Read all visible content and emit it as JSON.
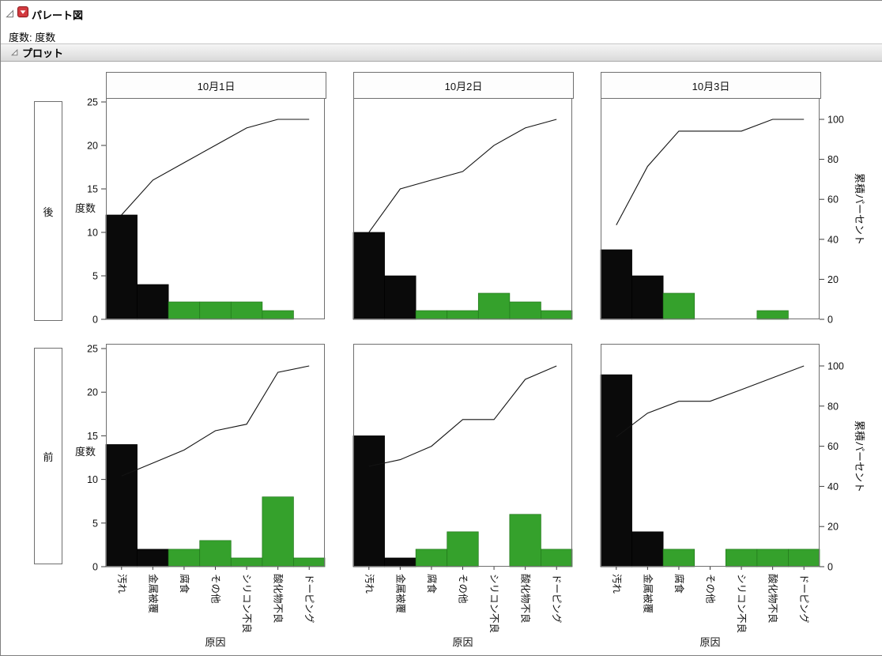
{
  "report": {
    "title": "パレート図",
    "freq_text": "度数: 度数",
    "plot_section_title": "プロット"
  },
  "chart_data": {
    "type": "bar",
    "chart_kind": "pareto-comparative",
    "title": "パレート図",
    "x_axis_label": "原因",
    "count_axis": {
      "label": "度数",
      "min": 0,
      "max": 25,
      "ticks": [
        0,
        5,
        10,
        15,
        20,
        25
      ]
    },
    "percent_axis": {
      "label": "累積パーセント",
      "min": 0,
      "max": 100,
      "ticks": [
        0,
        20,
        40,
        60,
        80,
        100
      ]
    },
    "facet_rows": [
      "後",
      "前"
    ],
    "facet_cols": [
      "10月1日",
      "10月2日",
      "10月3日"
    ],
    "categories": [
      "汚れ",
      "金属被覆",
      "腐食",
      "その他",
      "シリコン不良",
      "酸化物不良",
      "ドーピング"
    ],
    "bar_colors": [
      "black",
      "black",
      "green",
      "green",
      "green",
      "green",
      "green"
    ],
    "palette": {
      "black": "#0a0a0a",
      "green": "#35a12c"
    },
    "legend": "none",
    "grid": false,
    "cells": [
      {
        "row": "後",
        "col": "10月1日",
        "values": [
          12,
          4,
          2,
          2,
          2,
          1,
          0
        ],
        "total": 23,
        "cumulative_percent": [
          52.2,
          69.6,
          78.3,
          87.0,
          95.7,
          100,
          100
        ]
      },
      {
        "row": "後",
        "col": "10月2日",
        "values": [
          10,
          5,
          1,
          1,
          3,
          2,
          1
        ],
        "total": 23,
        "cumulative_percent": [
          43.5,
          65.2,
          69.6,
          73.9,
          87.0,
          95.7,
          100
        ]
      },
      {
        "row": "後",
        "col": "10月3日",
        "values": [
          8,
          5,
          3,
          0,
          0,
          1,
          0
        ],
        "total": 17,
        "cumulative_percent": [
          47.1,
          76.5,
          94.1,
          94.1,
          94.1,
          100,
          100
        ]
      },
      {
        "row": "前",
        "col": "10月1日",
        "values": [
          14,
          2,
          2,
          3,
          1,
          8,
          1
        ],
        "total": 31,
        "cumulative_percent": [
          45.2,
          51.6,
          58.1,
          67.7,
          71.0,
          96.8,
          100
        ]
      },
      {
        "row": "前",
        "col": "10月2日",
        "values": [
          15,
          1,
          2,
          4,
          0,
          6,
          2
        ],
        "total": 30,
        "cumulative_percent": [
          50.0,
          53.3,
          60.0,
          73.3,
          73.3,
          93.3,
          100
        ]
      },
      {
        "row": "前",
        "col": "10月3日",
        "values": [
          22,
          4,
          2,
          0,
          2,
          2,
          2
        ],
        "total": 34,
        "cumulative_percent": [
          64.7,
          76.5,
          82.4,
          82.4,
          88.2,
          94.1,
          100
        ]
      }
    ]
  }
}
